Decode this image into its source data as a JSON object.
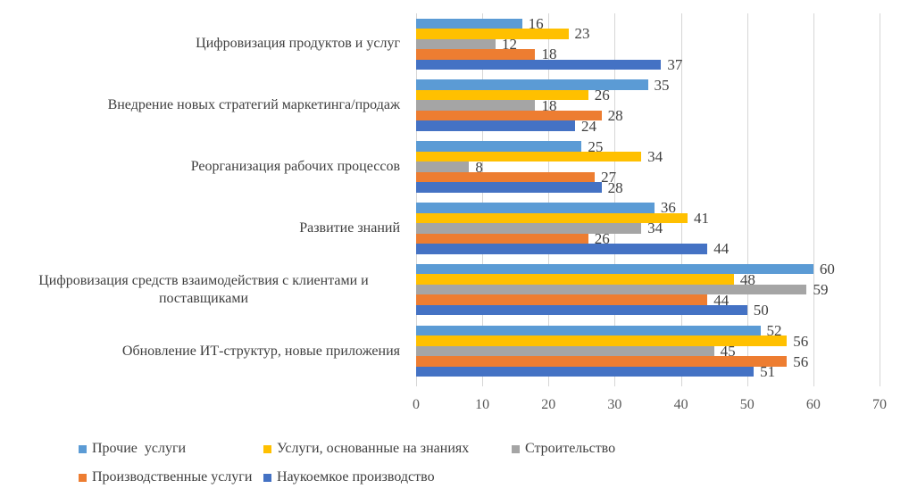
{
  "chart_data": {
    "type": "bar",
    "orientation": "horizontal",
    "title": "",
    "xlabel": "",
    "ylabel": "",
    "xlim": [
      0,
      70
    ],
    "x_ticks": [
      0,
      10,
      20,
      30,
      40,
      50,
      60,
      70
    ],
    "grid": true,
    "legend_position": "bottom",
    "categories": [
      "Цифровизация продуктов и услуг",
      "Внедрение новых стратегий маркетинга/продаж",
      "Реорганизация рабочих процессов",
      "Развитие знаний",
      "Цифровизация средств взаимодействия с клиентами и поставщиками",
      "Обновление ИТ-структур, новые приложения"
    ],
    "series": [
      {
        "name": "Прочие  услуги",
        "color": "#5B9BD5",
        "values": [
          16,
          35,
          25,
          36,
          60,
          52
        ]
      },
      {
        "name": "Услуги, основанные на знаниях",
        "color": "#FFC000",
        "values": [
          23,
          26,
          34,
          41,
          48,
          56
        ]
      },
      {
        "name": "Строительство",
        "color": "#A5A5A5",
        "values": [
          12,
          18,
          8,
          34,
          59,
          45
        ]
      },
      {
        "name": "Производственные услуги",
        "color": "#ED7D31",
        "values": [
          18,
          28,
          27,
          26,
          44,
          56
        ]
      },
      {
        "name": "Наукоемкое производство",
        "color": "#4472C4",
        "values": [
          37,
          24,
          28,
          44,
          50,
          51
        ]
      }
    ],
    "legend_rows": [
      [
        0,
        1,
        2
      ],
      [
        3,
        4
      ]
    ],
    "gridline_color": "#d6d6d6",
    "value_label_color": "#3f3f3f",
    "tick_label_color": "#595959"
  }
}
